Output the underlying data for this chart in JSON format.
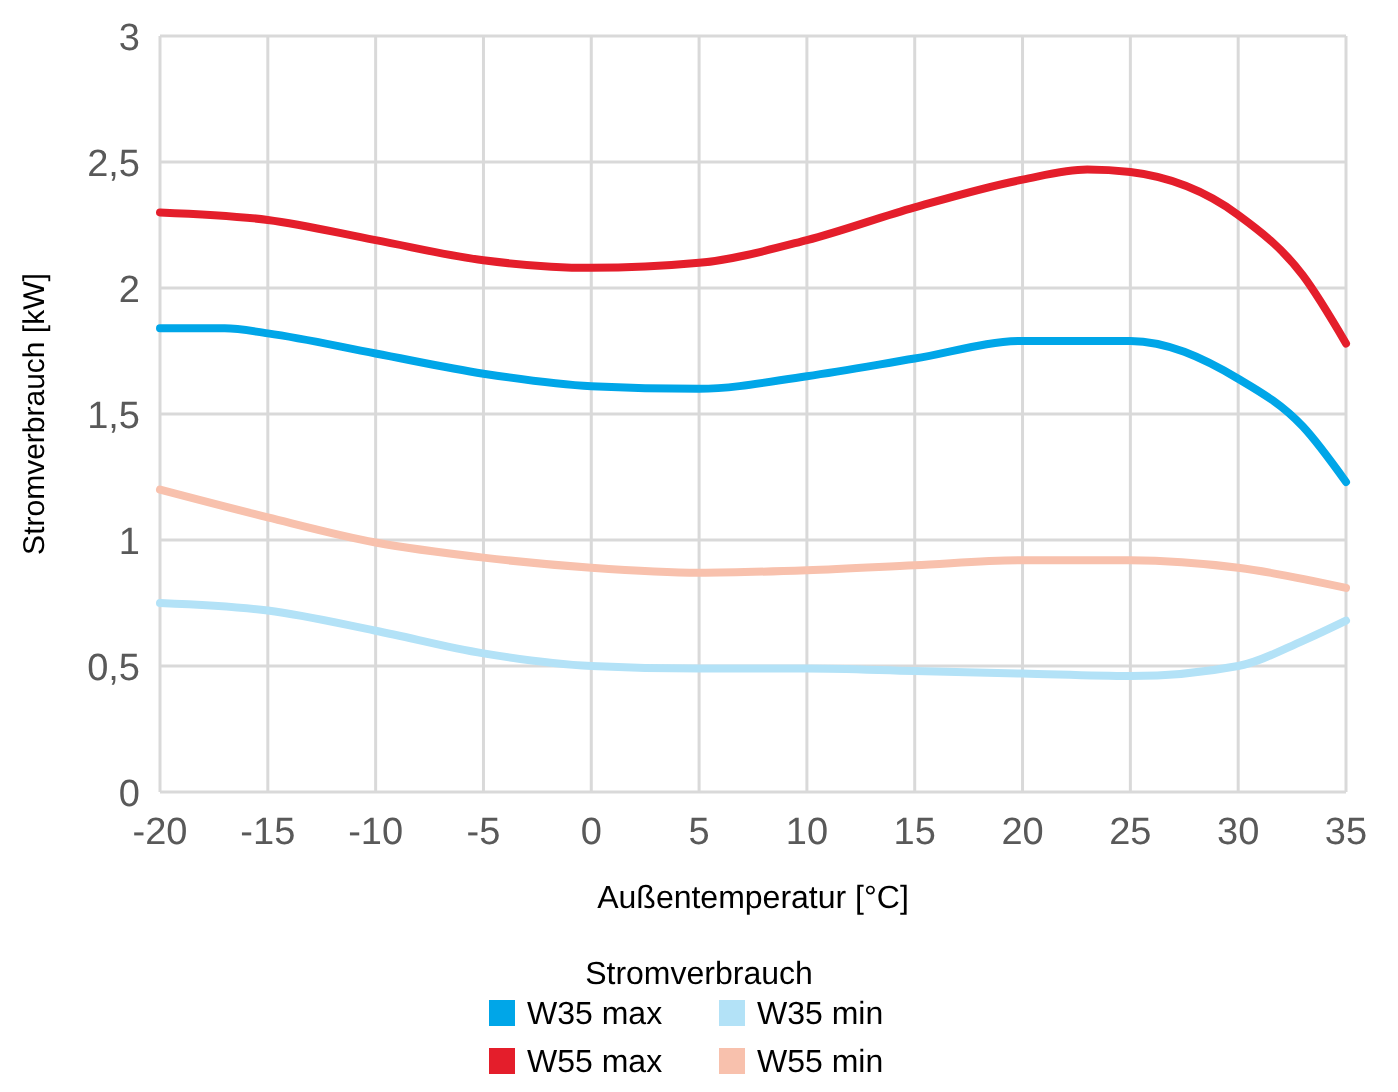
{
  "chart_data": {
    "type": "line",
    "xlabel": "Außentemperatur [°C]",
    "ylabel": "Stromverbrauch [kW]",
    "legend_title": "Stromverbrauch",
    "legend": "bottom",
    "grid": true,
    "marker": "none",
    "line_style": "solid",
    "xlim": [
      -20,
      35
    ],
    "xticks": [
      -20,
      -15,
      -10,
      -5,
      0,
      5,
      10,
      15,
      20,
      25,
      30,
      35
    ],
    "ylim": [
      0,
      3
    ],
    "yticks": [
      0,
      {
        "value": 0.5,
        "label": "0,5"
      },
      1,
      {
        "value": 1.5,
        "label": "1,5"
      },
      2,
      {
        "value": 2.5,
        "label": "2,5"
      },
      3
    ],
    "series": [
      {
        "name": "W35 max",
        "color": "#00a6e8",
        "x": [
          -20,
          -17,
          -15,
          -10,
          -5,
          0,
          5,
          10,
          15,
          20,
          25,
          30,
          33,
          35
        ],
        "values": [
          1.84,
          1.84,
          1.82,
          1.74,
          1.66,
          1.61,
          1.6,
          1.65,
          1.72,
          1.79,
          1.79,
          1.64,
          1.45,
          1.23
        ]
      },
      {
        "name": "W35 min",
        "color": "#b3e2f7",
        "x": [
          -20,
          -15,
          -10,
          -5,
          0,
          5,
          10,
          15,
          20,
          25,
          30,
          33,
          35
        ],
        "values": [
          0.75,
          0.72,
          0.64,
          0.55,
          0.5,
          0.49,
          0.49,
          0.48,
          0.47,
          0.46,
          0.5,
          0.6,
          0.68
        ]
      },
      {
        "name": "W55 max",
        "color": "#e41e2b",
        "x": [
          -20,
          -15,
          -10,
          -5,
          0,
          5,
          10,
          15,
          20,
          23,
          25,
          30,
          33,
          35
        ],
        "values": [
          2.3,
          2.27,
          2.19,
          2.11,
          2.08,
          2.1,
          2.19,
          2.32,
          2.43,
          2.47,
          2.46,
          2.29,
          2.05,
          1.78
        ]
      },
      {
        "name": "W55 min",
        "color": "#f8c1ad",
        "x": [
          -20,
          -15,
          -10,
          -5,
          0,
          5,
          10,
          15,
          20,
          25,
          30,
          35
        ],
        "values": [
          1.2,
          1.09,
          0.99,
          0.93,
          0.89,
          0.87,
          0.88,
          0.9,
          0.92,
          0.92,
          0.89,
          0.81
        ]
      }
    ]
  }
}
